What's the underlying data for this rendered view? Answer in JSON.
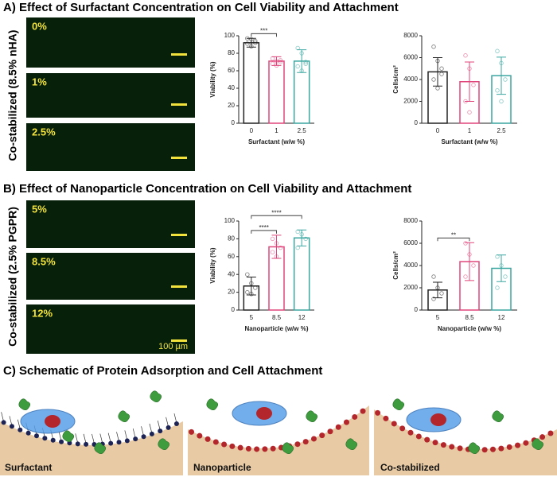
{
  "panel_a": {
    "title": "A) Effect of Surfactant Concentration on Cell Viability and Attachment",
    "side_label": "Co-stabilized (8.5% nHA)",
    "image_labels": [
      "0%",
      "1%",
      "2.5%"
    ]
  },
  "panel_b": {
    "title": "B) Effect of Nanoparticle Concentration on Cell Viability and Attachment",
    "side_label": "Co-stabilized (2.5% PGPR)",
    "image_labels": [
      "5%",
      "8.5%",
      "12%"
    ],
    "scale_bar": "100 µm"
  },
  "panel_c": {
    "title": "C) Schematic of Protein Adsorption and Cell Attachment",
    "labels": [
      "Surfactant",
      "Nanoparticle",
      "Co-stabilized"
    ]
  },
  "chart_data": [
    {
      "type": "bar",
      "ylabel": "Viability (%)",
      "xlabel": "Surfactant (w/w %)",
      "categories": [
        "0",
        "1",
        "2.5"
      ],
      "colors": [
        "#222222",
        "#e0457b",
        "#3aa6a0"
      ],
      "values": [
        92,
        71,
        71
      ],
      "errors": [
        5,
        5,
        13
      ],
      "points": [
        [
          97,
          96,
          94,
          91,
          88,
          92
        ],
        [
          74,
          71,
          70,
          68,
          66,
          72
        ],
        [
          86,
          80,
          70,
          65,
          60,
          68
        ]
      ],
      "ylim": [
        0,
        100
      ],
      "yticks": [
        0,
        20,
        40,
        60,
        80,
        100
      ],
      "significance": [
        {
          "from": 0,
          "to": 1,
          "label": "***"
        }
      ]
    },
    {
      "type": "bar",
      "ylabel": "Cells/cm²",
      "xlabel": "Surfactant (w/w %)",
      "categories": [
        "0",
        "1",
        "2.5"
      ],
      "colors": [
        "#222222",
        "#e0457b",
        "#3aa6a0"
      ],
      "values": [
        4700,
        3800,
        4350
      ],
      "errors": [
        1300,
        1800,
        1700
      ],
      "points": [
        [
          7000,
          5700,
          4500,
          4000,
          3200,
          5000
        ],
        [
          6200,
          5000,
          3500,
          2000,
          1000
        ],
        [
          6600,
          5500,
          4000,
          3000,
          2000
        ]
      ],
      "ylim": [
        0,
        8000
      ],
      "yticks": [
        0,
        2000,
        4000,
        6000,
        8000
      ],
      "significance": []
    },
    {
      "type": "bar",
      "ylabel": "Viability (%)",
      "xlabel": "Nanoparticle (w/w %)",
      "categories": [
        "5",
        "8.5",
        "12"
      ],
      "colors": [
        "#222222",
        "#e0457b",
        "#3aa6a0"
      ],
      "values": [
        27,
        71,
        81
      ],
      "errors": [
        10,
        13,
        9
      ],
      "points": [
        [
          40,
          30,
          25,
          20,
          18
        ],
        [
          80,
          75,
          70,
          65,
          60
        ],
        [
          88,
          85,
          80,
          70
        ]
      ],
      "ylim": [
        0,
        100
      ],
      "yticks": [
        0,
        20,
        40,
        60,
        80,
        100
      ],
      "significance": [
        {
          "from": 0,
          "to": 1,
          "label": "****"
        },
        {
          "from": 0,
          "to": 2,
          "label": "****"
        }
      ]
    },
    {
      "type": "bar",
      "ylabel": "Cells/cm²",
      "xlabel": "Nanoparticle (w/w %)",
      "categories": [
        "5",
        "8.5",
        "12"
      ],
      "colors": [
        "#222222",
        "#e0457b",
        "#3aa6a0"
      ],
      "values": [
        1800,
        4350,
        3750
      ],
      "errors": [
        700,
        1700,
        1200
      ],
      "points": [
        [
          3000,
          2000,
          1500,
          1000
        ],
        [
          6000,
          5000,
          4000,
          3000
        ],
        [
          4800,
          4000,
          3000,
          2000
        ]
      ],
      "ylim": [
        0,
        8000
      ],
      "yticks": [
        0,
        2000,
        4000,
        6000,
        8000
      ],
      "significance": [
        {
          "from": 0,
          "to": 1,
          "label": "**"
        }
      ]
    }
  ]
}
